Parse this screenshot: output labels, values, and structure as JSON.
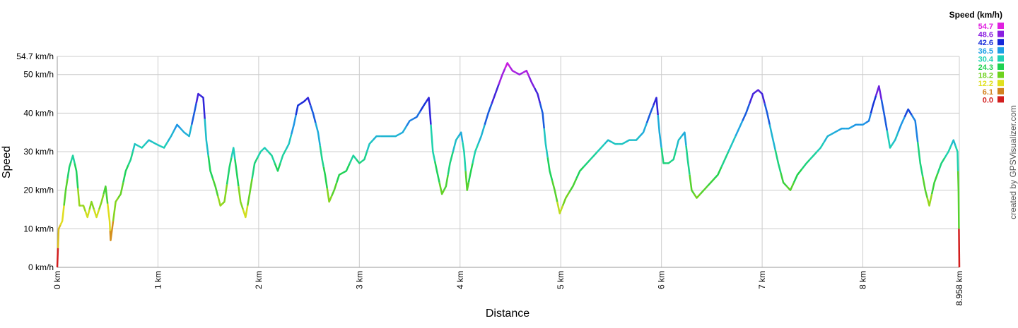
{
  "chart_data": {
    "type": "line",
    "x_label": "Distance",
    "y_label": "Speed",
    "credit": "created by GPSVisualizer.com",
    "x": [
      0,
      0.014,
      0.05,
      0.084,
      0.12,
      0.155,
      0.19,
      0.22,
      0.26,
      0.3,
      0.34,
      0.39,
      0.44,
      0.48,
      0.52,
      0.53,
      0.58,
      0.63,
      0.68,
      0.73,
      0.77,
      0.84,
      0.91,
      0.98,
      1.06,
      1.13,
      1.19,
      1.26,
      1.31,
      1.36,
      1.4,
      1.45,
      1.48,
      1.52,
      1.57,
      1.62,
      1.66,
      1.71,
      1.75,
      1.78,
      1.82,
      1.87,
      1.91,
      1.96,
      2.02,
      2.06,
      2.13,
      2.19,
      2.24,
      2.3,
      2.35,
      2.39,
      2.45,
      2.49,
      2.54,
      2.59,
      2.63,
      2.66,
      2.7,
      2.75,
      2.8,
      2.87,
      2.94,
      3.0,
      3.05,
      3.1,
      3.17,
      3.26,
      3.36,
      3.43,
      3.5,
      3.57,
      3.64,
      3.69,
      3.73,
      3.77,
      3.82,
      3.86,
      3.9,
      3.96,
      4.01,
      4.04,
      4.07,
      4.1,
      4.15,
      4.21,
      4.28,
      4.35,
      4.42,
      4.47,
      4.52,
      4.59,
      4.66,
      4.71,
      4.77,
      4.82,
      4.85,
      4.89,
      4.94,
      4.99,
      5.05,
      5.12,
      5.19,
      5.26,
      5.33,
      5.4,
      5.47,
      5.54,
      5.61,
      5.68,
      5.75,
      5.82,
      5.89,
      5.95,
      5.98,
      6.02,
      6.07,
      6.12,
      6.17,
      6.23,
      6.26,
      6.3,
      6.35,
      6.42,
      6.49,
      6.56,
      6.63,
      6.7,
      6.77,
      6.84,
      6.91,
      6.96,
      7.0,
      7.05,
      7.1,
      7.16,
      7.21,
      7.28,
      7.35,
      7.44,
      7.51,
      7.58,
      7.65,
      7.72,
      7.79,
      7.86,
      7.93,
      8.0,
      8.06,
      8.1,
      8.16,
      8.21,
      8.27,
      8.32,
      8.38,
      8.45,
      8.52,
      8.57,
      8.62,
      8.66,
      8.71,
      8.78,
      8.85,
      8.9,
      8.94,
      8.95,
      8.958
    ],
    "values": [
      0,
      10,
      12,
      20,
      26,
      29,
      25,
      16,
      16,
      13,
      17,
      13,
      17,
      21,
      12,
      7,
      17,
      19,
      25,
      28,
      32,
      31,
      33,
      32,
      31,
      34,
      37,
      35,
      34,
      40,
      45,
      44,
      33,
      25,
      21,
      16,
      17,
      26,
      31,
      25,
      17,
      13,
      19,
      27,
      30,
      31,
      29,
      25,
      29,
      32,
      37,
      42,
      43,
      44,
      40,
      35,
      28,
      24,
      17,
      20,
      24,
      25,
      29,
      27,
      28,
      32,
      34,
      34,
      34,
      35,
      38,
      39,
      42,
      44,
      30,
      25,
      19,
      21,
      27,
      33,
      35,
      30,
      20,
      24,
      30,
      34,
      40,
      45,
      50,
      53,
      51,
      50,
      51,
      48,
      45,
      40,
      32,
      25,
      20,
      14,
      18,
      21,
      25,
      27,
      29,
      31,
      33,
      32,
      32,
      33,
      33,
      35,
      40,
      44,
      35,
      27,
      27,
      28,
      33,
      35,
      28,
      20,
      18,
      20,
      22,
      24,
      28,
      32,
      36,
      40,
      45,
      46,
      45,
      40,
      34,
      27,
      22,
      20,
      24,
      27,
      29,
      31,
      34,
      35,
      36,
      36,
      37,
      37,
      38,
      42,
      47,
      40,
      31,
      33,
      37,
      41,
      38,
      27,
      20,
      16,
      22,
      27,
      30,
      33,
      30,
      20,
      0
    ],
    "xlim": [
      0,
      8.958
    ],
    "xticks": [
      {
        "value": 0,
        "label": "0 km"
      },
      {
        "value": 1,
        "label": "1 km"
      },
      {
        "value": 2,
        "label": "2 km"
      },
      {
        "value": 3,
        "label": "3 km"
      },
      {
        "value": 4,
        "label": "4 km"
      },
      {
        "value": 5,
        "label": "5 km"
      },
      {
        "value": 6,
        "label": "6 km"
      },
      {
        "value": 7,
        "label": "7 km"
      },
      {
        "value": 8,
        "label": "8 km"
      },
      {
        "value": 8.958,
        "label": "8.958 km"
      }
    ],
    "ylim": [
      0,
      54.7
    ],
    "yticks": [
      {
        "value": 0,
        "label": "0 km/h"
      },
      {
        "value": 10,
        "label": "10 km/h"
      },
      {
        "value": 20,
        "label": "20 km/h"
      },
      {
        "value": 30,
        "label": "30 km/h"
      },
      {
        "value": 40,
        "label": "40 km/h"
      },
      {
        "value": 50,
        "label": "50 km/h"
      },
      {
        "value": 54.7,
        "label": "54.7 km/h"
      }
    ],
    "grid": true,
    "legend": {
      "title": "Speed (km/h)",
      "position": "top-right",
      "stops": [
        {
          "value": 54.7,
          "color": "#e020e0"
        },
        {
          "value": 48.6,
          "color": "#8a1ee0"
        },
        {
          "value": 42.6,
          "color": "#1428d8"
        },
        {
          "value": 36.5,
          "color": "#1ea0e6"
        },
        {
          "value": 30.4,
          "color": "#1ed2b4"
        },
        {
          "value": 24.3,
          "color": "#1ed250"
        },
        {
          "value": 18.2,
          "color": "#6ed21e"
        },
        {
          "value": 12.2,
          "color": "#e0e01e"
        },
        {
          "value": 6.1,
          "color": "#d2821e"
        },
        {
          "value": 0,
          "label": "0.0",
          "color": "#d21e1e"
        }
      ]
    }
  }
}
